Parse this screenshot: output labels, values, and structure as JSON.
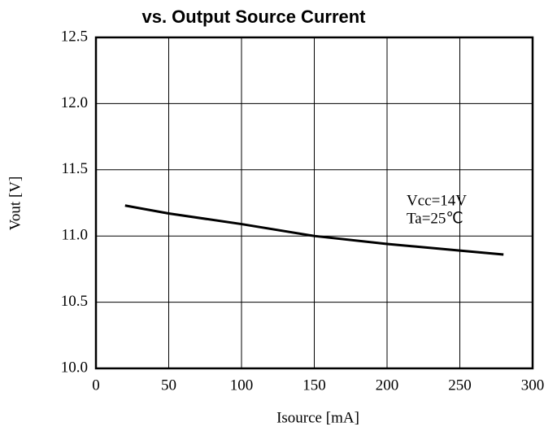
{
  "chart_data": {
    "type": "line",
    "title": "vs. Output Source Current",
    "x_label": "Isource [mA]",
    "y_label": "Vout [V]",
    "annotations": [
      "Vcc=14V",
      "Ta=25℃"
    ],
    "x": [
      20,
      50,
      100,
      150,
      200,
      250,
      280
    ],
    "series": [
      {
        "name": null,
        "color": "#000000",
        "values": [
          11.23,
          11.17,
          11.09,
          11.0,
          10.94,
          10.89,
          10.86
        ]
      }
    ],
    "xlim": [
      0,
      300
    ],
    "xticks": [
      0,
      50,
      100,
      150,
      200,
      250,
      300
    ],
    "ylim": [
      10,
      12.5
    ],
    "yticks": [
      {
        "value": 10,
        "label": "10.0"
      },
      10.5,
      {
        "value": 11,
        "label": "11.0"
      },
      11.5,
      {
        "value": 12,
        "label": "12.0"
      },
      12.5
    ],
    "grid": true
  }
}
